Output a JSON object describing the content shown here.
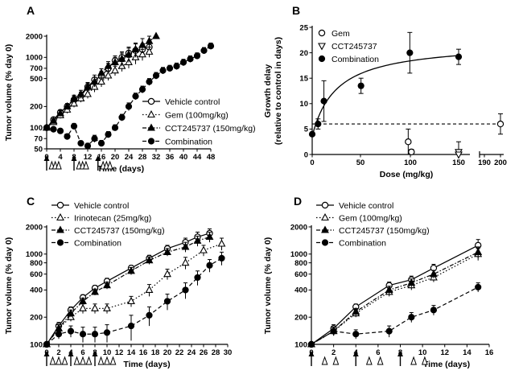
{
  "chart_data": [
    {
      "panel": "A",
      "type": "line",
      "xlabel": "Time (days)",
      "ylabel": "Tumor volume  (% day 0)",
      "xlim": [
        0,
        48
      ],
      "xticks": [
        0,
        4,
        8,
        12,
        16,
        20,
        24,
        28,
        32,
        36,
        40,
        44,
        48
      ],
      "ylim": [
        50,
        2000
      ],
      "ylog": true,
      "yticks": [
        50,
        70,
        100,
        200,
        500,
        700,
        1000,
        2000
      ],
      "legend_position": "right",
      "series": [
        {
          "name": "Vehicle control",
          "marker": "circle-open",
          "line": "solid",
          "x": [
            0,
            2,
            4,
            6,
            8,
            10,
            12,
            14,
            16,
            18,
            20,
            22,
            24,
            26,
            28,
            30
          ],
          "y": [
            100,
            130,
            165,
            200,
            250,
            280,
            380,
            480,
            540,
            700,
            900,
            1000,
            1150,
            1250,
            1300,
            1400
          ],
          "err": [
            0,
            10,
            15,
            20,
            30,
            40,
            60,
            80,
            90,
            120,
            150,
            200,
            250,
            300,
            250,
            250
          ]
        },
        {
          "name": "Gem (100mg/kg)",
          "marker": "triangle-up-open",
          "line": "dotted",
          "x": [
            0,
            2,
            4,
            6,
            8,
            10,
            12,
            14,
            16,
            18,
            20,
            22,
            24,
            26,
            28,
            30
          ],
          "y": [
            100,
            120,
            150,
            180,
            220,
            260,
            300,
            380,
            450,
            550,
            650,
            750,
            850,
            1000,
            1100,
            1200
          ],
          "err": [
            0,
            10,
            15,
            20,
            25,
            30,
            40,
            60,
            70,
            80,
            100,
            120,
            150,
            200,
            200,
            200
          ]
        },
        {
          "name": "CCT245737 (150mg/kg)",
          "marker": "triangle-up-filled",
          "line": "dashdot",
          "x": [
            0,
            2,
            4,
            6,
            8,
            10,
            12,
            14,
            16,
            18,
            20,
            22,
            24,
            26,
            28,
            30,
            32
          ],
          "y": [
            100,
            125,
            160,
            200,
            260,
            300,
            380,
            450,
            600,
            750,
            850,
            950,
            1100,
            1300,
            1500,
            1700,
            2000
          ],
          "err": [
            0,
            10,
            15,
            20,
            30,
            40,
            50,
            70,
            90,
            120,
            150,
            200,
            250,
            300,
            350,
            300,
            0
          ]
        },
        {
          "name": "Combination",
          "marker": "circle-filled",
          "line": "dashed",
          "x": [
            0,
            2,
            4,
            6,
            8,
            10,
            12,
            14,
            16,
            18,
            20,
            22,
            24,
            26,
            28,
            30,
            32,
            34,
            36,
            38,
            40,
            42,
            44,
            46,
            48
          ],
          "y": [
            100,
            95,
            90,
            75,
            105,
            60,
            55,
            70,
            60,
            80,
            100,
            140,
            200,
            280,
            350,
            450,
            550,
            650,
            700,
            750,
            850,
            950,
            1050,
            1250,
            1450
          ],
          "err": [
            0,
            5,
            5,
            6,
            10,
            5,
            5,
            8,
            6,
            8,
            10,
            15,
            25,
            30,
            40,
            50,
            60,
            70,
            70,
            80,
            90,
            100,
            110,
            130,
            150
          ]
        }
      ]
    },
    {
      "panel": "B",
      "type": "scatter",
      "xlabel": "Dose (mg/kg)",
      "ylabel": "Growth delay (relative to control in days)",
      "ylabel_lines": [
        "Growth delay",
        "(relative to control in days)"
      ],
      "xlim": [
        0,
        200
      ],
      "xticks": [
        0,
        50,
        100,
        150,
        190,
        200
      ],
      "axis_break": [
        162,
        188
      ],
      "ylim": [
        0,
        25
      ],
      "yticks": [
        0,
        5,
        10,
        15,
        20,
        25
      ],
      "reference_line": 6,
      "legend_position": "top-left",
      "series": [
        {
          "name": "Gem",
          "marker": "circle-open",
          "x": [
            100,
            100,
            200
          ],
          "y": [
            2.5,
            0.5,
            6
          ],
          "err": [
            2.5,
            0.5,
            2
          ]
        },
        {
          "name": "CCT245737",
          "marker": "triangle-down-open",
          "x": [
            150,
            150
          ],
          "y": [
            0.5,
            0
          ],
          "err": [
            2,
            0
          ]
        },
        {
          "name": "Combination",
          "marker": "circle-filled",
          "line": "fit",
          "x": [
            0,
            6,
            12,
            50,
            100,
            150
          ],
          "y": [
            4,
            6,
            10.5,
            13.5,
            20,
            19.2
          ],
          "err": [
            0,
            1,
            4,
            1.5,
            4,
            1.5
          ]
        }
      ]
    },
    {
      "panel": "C",
      "type": "line",
      "xlabel": "Time (days)",
      "ylabel": "Tumor volume  (% day 0)",
      "xlim": [
        0,
        30
      ],
      "xticks": [
        0,
        2,
        4,
        6,
        8,
        10,
        12,
        14,
        16,
        18,
        20,
        22,
        24,
        26,
        28,
        30
      ],
      "ylim": [
        100,
        2000
      ],
      "ylog": true,
      "yticks": [
        100,
        200,
        400,
        600,
        800,
        1000,
        2000
      ],
      "legend_position": "top-left",
      "series": [
        {
          "name": "Vehicle control",
          "marker": "circle-open",
          "line": "solid",
          "x": [
            0,
            2,
            4,
            6,
            8,
            10,
            14,
            17,
            20,
            23,
            25,
            27
          ],
          "y": [
            100,
            160,
            240,
            330,
            420,
            500,
            700,
            900,
            1150,
            1350,
            1550,
            1700
          ],
          "err": [
            0,
            15,
            20,
            25,
            30,
            40,
            50,
            70,
            100,
            150,
            200,
            200
          ]
        },
        {
          "name": "Irinotecan (25mg/kg)",
          "marker": "triangle-up-open",
          "line": "dotted",
          "x": [
            0,
            2,
            4,
            6,
            8,
            10,
            14,
            17,
            20,
            23,
            26,
            29
          ],
          "y": [
            100,
            150,
            200,
            250,
            250,
            250,
            300,
            400,
            600,
            800,
            1100,
            1300
          ],
          "err": [
            0,
            15,
            20,
            30,
            30,
            30,
            40,
            60,
            80,
            120,
            150,
            200
          ]
        },
        {
          "name": "CCT245737 (150mg/kg)",
          "marker": "triangle-up-filled",
          "line": "dashdot",
          "x": [
            0,
            2,
            4,
            6,
            8,
            10,
            14,
            17,
            20,
            23,
            25,
            27
          ],
          "y": [
            100,
            150,
            220,
            300,
            380,
            450,
            650,
            850,
            1050,
            1200,
            1400,
            1550
          ],
          "err": [
            0,
            15,
            20,
            25,
            30,
            40,
            60,
            80,
            100,
            150,
            180,
            200
          ]
        },
        {
          "name": "Combination",
          "marker": "circle-filled",
          "line": "dashed",
          "x": [
            0,
            2,
            4,
            6,
            8,
            10,
            14,
            17,
            20,
            23,
            25,
            27,
            29
          ],
          "y": [
            100,
            130,
            140,
            130,
            130,
            135,
            160,
            210,
            300,
            400,
            550,
            750,
            900
          ],
          "err": [
            0,
            15,
            20,
            25,
            25,
            30,
            50,
            50,
            60,
            80,
            100,
            120,
            150
          ]
        }
      ]
    },
    {
      "panel": "D",
      "type": "line",
      "xlabel": "Time (days)",
      "ylabel": "Tumor volume  (% day 0)",
      "xlim": [
        0,
        16
      ],
      "xticks": [
        0,
        2,
        4,
        6,
        8,
        10,
        12,
        14,
        16
      ],
      "ylim": [
        100,
        2000
      ],
      "ylog": true,
      "yticks": [
        100,
        200,
        400,
        600,
        800,
        1000,
        2000
      ],
      "legend_position": "top-left",
      "series": [
        {
          "name": "Vehicle control",
          "marker": "circle-open",
          "line": "solid",
          "x": [
            0,
            2,
            4,
            7,
            9,
            11,
            15
          ],
          "y": [
            100,
            150,
            260,
            450,
            520,
            700,
            1250
          ],
          "err": [
            0,
            15,
            20,
            40,
            50,
            70,
            200
          ]
        },
        {
          "name": "Gem (100mg/kg)",
          "marker": "triangle-up-open",
          "line": "dotted",
          "x": [
            0,
            2,
            4,
            7,
            9,
            11,
            15
          ],
          "y": [
            100,
            140,
            220,
            380,
            450,
            550,
            1000
          ],
          "err": [
            0,
            15,
            20,
            40,
            50,
            60,
            150
          ]
        },
        {
          "name": "CCT245737 (150mg/kg)",
          "marker": "triangle-up-filled",
          "line": "dashdot",
          "x": [
            0,
            2,
            4,
            7,
            9,
            11,
            15
          ],
          "y": [
            100,
            140,
            230,
            400,
            480,
            600,
            1050
          ],
          "err": [
            0,
            15,
            20,
            40,
            50,
            60,
            150
          ]
        },
        {
          "name": "Combination",
          "marker": "circle-filled",
          "line": "dashed",
          "x": [
            0,
            2,
            4,
            7,
            9,
            11,
            15
          ],
          "y": [
            100,
            140,
            130,
            140,
            200,
            240,
            430
          ],
          "err": [
            0,
            15,
            15,
            20,
            25,
            30,
            50
          ]
        }
      ]
    }
  ],
  "dosing": {
    "A": {
      "arrows": [
        0,
        8,
        15
      ],
      "triangles": [
        [
          1.5,
          2.5,
          3.5
        ],
        [
          9.5,
          10.5,
          11.5
        ],
        [
          16.5,
          17.5,
          18.5
        ]
      ]
    },
    "C": {
      "arrows": [
        0,
        4,
        8
      ],
      "triangles": [
        [
          1,
          2,
          3
        ],
        [
          5,
          6,
          7
        ],
        [
          9,
          10,
          11
        ]
      ]
    },
    "D": {
      "arrows": [
        0,
        4,
        8
      ],
      "triangles": [
        [
          1.2,
          2.2
        ],
        [
          5.2,
          6.2
        ],
        [
          9.2,
          10.2
        ]
      ]
    }
  }
}
